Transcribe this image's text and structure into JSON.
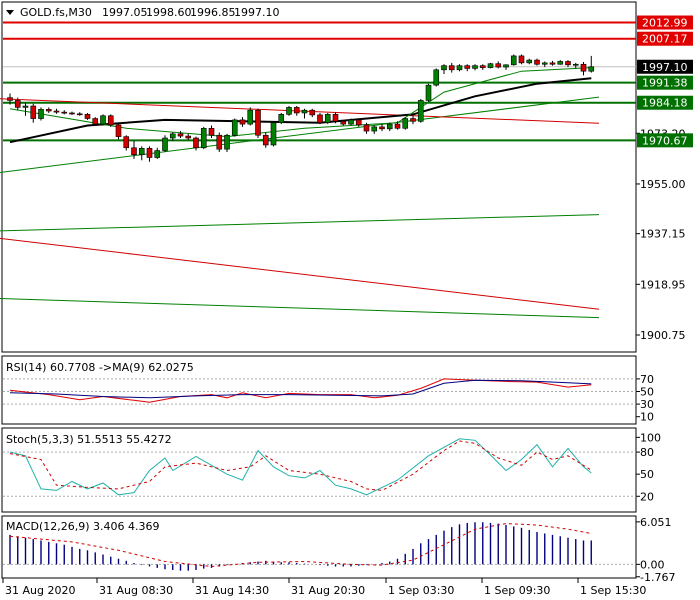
{
  "chart_data": [
    {
      "type": "candlestick",
      "panel": "price",
      "title": "GOLD.fs,M30",
      "ohlc": [
        "1997.05",
        "1998.60",
        "1996.85",
        "1997.10"
      ],
      "ylim": [
        1895,
        2020
      ],
      "yticks": [
        "1900.75",
        "1918.95",
        "1937.15",
        "1955.00",
        "1973.20"
      ],
      "xticks": [
        "31 Aug 2020",
        "31 Aug 08:30",
        "31 Aug 14:30",
        "31 Aug 20:30",
        "1 Sep 03:30",
        "1 Sep 09:30",
        "1 Sep 15:30"
      ],
      "current_price": {
        "label": "1997.10",
        "value": 1997.1
      },
      "levels": [
        {
          "label": "2012.99",
          "value": 2012.99,
          "color": "#e00000"
        },
        {
          "label": "2007.17",
          "value": 2007.17,
          "color": "#e00000"
        },
        {
          "label": "1991.38",
          "value": 1991.38,
          "color": "#007000"
        },
        {
          "label": "1984.18",
          "value": 1984.18,
          "color": "#007000"
        },
        {
          "label": "1970.67",
          "value": 1970.67,
          "color": "#007000"
        }
      ],
      "candles": [
        [
          1986.0,
          1987.5,
          1983.5,
          1985.0
        ],
        [
          1985.0,
          1986.0,
          1981.5,
          1982.5
        ],
        [
          1982.5,
          1984.0,
          1979.5,
          1983.0
        ],
        [
          1983.0,
          1983.8,
          1977.0,
          1978.5
        ],
        [
          1978.5,
          1982.5,
          1977.8,
          1981.8
        ],
        [
          1981.8,
          1982.5,
          1980.5,
          1981.2
        ],
        [
          1981.2,
          1982.0,
          1980.2,
          1980.8
        ],
        [
          1980.8,
          1981.5,
          1980.0,
          1980.5
        ],
        [
          1980.5,
          1981.0,
          1979.8,
          1980.2
        ],
        [
          1980.2,
          1980.8,
          1979.5,
          1980.0
        ],
        [
          1980.0,
          1980.5,
          1978.0,
          1978.5
        ],
        [
          1978.5,
          1979.0,
          1976.0,
          1976.5
        ],
        [
          1976.5,
          1980.0,
          1976.0,
          1979.5
        ],
        [
          1979.5,
          1980.0,
          1975.5,
          1976.2
        ],
        [
          1976.2,
          1976.8,
          1971.0,
          1972.0
        ],
        [
          1972.0,
          1972.5,
          1967.0,
          1968.0
        ],
        [
          1968.0,
          1970.5,
          1964.0,
          1965.5
        ],
        [
          1965.5,
          1968.5,
          1963.5,
          1967.8
        ],
        [
          1967.8,
          1968.5,
          1963.0,
          1964.5
        ],
        [
          1964.5,
          1968.0,
          1964.0,
          1967.0
        ],
        [
          1967.0,
          1972.5,
          1966.5,
          1971.5
        ],
        [
          1971.5,
          1973.5,
          1970.5,
          1973.0
        ],
        [
          1973.0,
          1974.0,
          1971.5,
          1972.2
        ],
        [
          1972.2,
          1973.0,
          1970.8,
          1971.5
        ],
        [
          1971.5,
          1972.0,
          1967.0,
          1968.0
        ],
        [
          1968.0,
          1975.5,
          1967.5,
          1975.0
        ],
        [
          1975.0,
          1976.0,
          1971.5,
          1972.5
        ],
        [
          1972.5,
          1973.5,
          1966.5,
          1967.5
        ],
        [
          1967.5,
          1973.0,
          1966.5,
          1972.5
        ],
        [
          1972.5,
          1978.5,
          1972.0,
          1978.0
        ],
        [
          1978.0,
          1979.0,
          1975.5,
          1976.5
        ],
        [
          1976.5,
          1982.5,
          1976.0,
          1981.5
        ],
        [
          1981.5,
          1982.0,
          1971.5,
          1972.5
        ],
        [
          1972.5,
          1973.5,
          1968.0,
          1969.0
        ],
        [
          1969.0,
          1977.5,
          1968.5,
          1977.0
        ],
        [
          1977.0,
          1980.5,
          1976.5,
          1980.0
        ],
        [
          1980.0,
          1983.0,
          1979.5,
          1982.5
        ],
        [
          1982.5,
          1983.0,
          1979.5,
          1980.5
        ],
        [
          1980.5,
          1982.0,
          1978.5,
          1981.5
        ],
        [
          1981.5,
          1982.0,
          1979.0,
          1979.8
        ],
        [
          1979.8,
          1980.5,
          1976.5,
          1977.0
        ],
        [
          1977.0,
          1980.5,
          1976.5,
          1980.0
        ],
        [
          1980.0,
          1980.8,
          1976.8,
          1977.5
        ],
        [
          1977.5,
          1978.0,
          1976.0,
          1976.5
        ],
        [
          1976.5,
          1978.5,
          1976.0,
          1978.0
        ],
        [
          1978.0,
          1978.5,
          1975.5,
          1976.2
        ],
        [
          1976.2,
          1977.0,
          1973.0,
          1974.0
        ],
        [
          1974.0,
          1976.0,
          1973.0,
          1975.5
        ],
        [
          1975.5,
          1976.5,
          1974.0,
          1974.8
        ],
        [
          1974.8,
          1977.0,
          1974.0,
          1976.5
        ],
        [
          1976.5,
          1977.5,
          1974.5,
          1975.0
        ],
        [
          1975.0,
          1979.0,
          1974.5,
          1978.5
        ],
        [
          1978.5,
          1979.5,
          1976.5,
          1977.5
        ],
        [
          1977.5,
          1985.5,
          1977.0,
          1985.0
        ],
        [
          1985.0,
          1991.0,
          1984.5,
          1990.5
        ],
        [
          1990.5,
          1996.5,
          1990.0,
          1996.0
        ],
        [
          1996.0,
          1998.0,
          1994.5,
          1997.5
        ],
        [
          1997.5,
          1998.5,
          1995.0,
          1996.0
        ],
        [
          1996.0,
          1998.0,
          1995.5,
          1997.5
        ],
        [
          1997.5,
          1998.0,
          1995.5,
          1996.5
        ],
        [
          1996.5,
          1998.0,
          1995.8,
          1997.5
        ],
        [
          1997.5,
          1998.0,
          1996.0,
          1996.8
        ],
        [
          1996.8,
          1998.5,
          1996.5,
          1998.2
        ],
        [
          1998.2,
          1999.0,
          1996.5,
          1997.0
        ],
        [
          1997.0,
          1998.0,
          1996.0,
          1997.8
        ],
        [
          1997.8,
          2001.5,
          1997.5,
          2001.0
        ],
        [
          2001.0,
          2001.5,
          1998.0,
          1998.5
        ],
        [
          1998.5,
          2000.0,
          1998.0,
          1999.5
        ],
        [
          1999.5,
          2000.0,
          1997.5,
          1998.0
        ],
        [
          1998.0,
          1999.0,
          1997.0,
          1998.5
        ],
        [
          1998.5,
          1999.2,
          1997.5,
          1998.0
        ],
        [
          1998.0,
          1999.5,
          1997.8,
          1999.0
        ],
        [
          1999.0,
          1999.5,
          1997.0,
          1997.8
        ],
        [
          1997.8,
          1998.5,
          1996.5,
          1998.0
        ],
        [
          1998.0,
          1998.8,
          1994.0,
          1995.5
        ],
        [
          1995.5,
          2001.0,
          1995.0,
          1997.1
        ]
      ],
      "ma_fast": [
        [
          0,
          1982.0
        ],
        [
          15,
          1975.0
        ],
        [
          28,
          1972.0
        ],
        [
          38,
          1975.0
        ],
        [
          50,
          1977.0
        ],
        [
          56,
          1988.0
        ],
        [
          66,
          1995.5
        ],
        [
          75,
          1996.8
        ]
      ],
      "ma_slow": [
        [
          0,
          1970.0
        ],
        [
          10,
          1976.0
        ],
        [
          20,
          1978.0
        ],
        [
          40,
          1977.0
        ],
        [
          52,
          1980.0
        ],
        [
          60,
          1986.5
        ],
        [
          68,
          1991.0
        ],
        [
          75,
          1993.0
        ]
      ],
      "trendlines": [
        {
          "color": "#008000",
          "from": [
            -3,
            1958.5
          ],
          "to": [
            76,
            1986.2
          ]
        },
        {
          "color": "#008000",
          "from": [
            -3,
            1938.0
          ],
          "to": [
            76,
            1944.0
          ]
        },
        {
          "color": "#008000",
          "from": [
            -3,
            1914.0
          ],
          "to": [
            76,
            1907.0
          ]
        },
        {
          "color": "#d00000",
          "from": [
            -3,
            1985.8
          ],
          "to": [
            76,
            1976.8
          ]
        },
        {
          "color": "#d00000",
          "from": [
            -3,
            1936.0
          ],
          "to": [
            76,
            1910.0
          ]
        }
      ]
    },
    {
      "type": "line",
      "panel": "rsi",
      "label": "RSI(14) 60.7708  ->MA(9) 62.0275",
      "ylim": [
        0,
        100
      ],
      "yticks": [
        "70",
        "50",
        "30",
        "10"
      ],
      "levels": [
        70,
        50,
        30
      ],
      "series": [
        {
          "color": "#e00000",
          "points": [
            [
              0,
              52
            ],
            [
              5,
              45
            ],
            [
              9,
              37
            ],
            [
              12,
              42
            ],
            [
              16,
              36
            ],
            [
              18,
              33
            ],
            [
              22,
              42
            ],
            [
              26,
              45
            ],
            [
              28,
              40
            ],
            [
              30,
              48
            ],
            [
              33,
              40
            ],
            [
              36,
              47
            ],
            [
              40,
              45
            ],
            [
              44,
              45
            ],
            [
              47,
              40
            ],
            [
              50,
              44
            ],
            [
              53,
              55
            ],
            [
              56,
              70
            ],
            [
              60,
              68
            ],
            [
              64,
              66
            ],
            [
              68,
              65
            ],
            [
              72,
              57
            ],
            [
              75,
              60.8
            ]
          ]
        },
        {
          "color": "#000080",
          "points": [
            [
              0,
              48
            ],
            [
              6,
              46
            ],
            [
              12,
              42
            ],
            [
              18,
              40
            ],
            [
              24,
              43
            ],
            [
              30,
              45
            ],
            [
              36,
              45
            ],
            [
              42,
              44
            ],
            [
              48,
              43
            ],
            [
              52,
              46
            ],
            [
              56,
              63
            ],
            [
              60,
              68
            ],
            [
              66,
              67
            ],
            [
              72,
              64
            ],
            [
              75,
              62.0
            ]
          ]
        }
      ]
    },
    {
      "type": "line",
      "panel": "stochastic",
      "label": "Stoch(5,3,3) 51.5513 55.4272",
      "ylim": [
        0,
        110
      ],
      "yticks": [
        "100",
        "80",
        "50",
        "20"
      ],
      "levels": [
        80,
        20
      ],
      "series": [
        {
          "color": "#20b2aa",
          "points": [
            [
              0,
              80
            ],
            [
              2,
              75
            ],
            [
              4,
              30
            ],
            [
              6,
              28
            ],
            [
              8,
              40
            ],
            [
              10,
              30
            ],
            [
              12,
              38
            ],
            [
              14,
              22
            ],
            [
              16,
              25
            ],
            [
              18,
              55
            ],
            [
              20,
              72
            ],
            [
              21,
              55
            ],
            [
              24,
              74
            ],
            [
              28,
              50
            ],
            [
              30,
              42
            ],
            [
              32,
              82
            ],
            [
              34,
              60
            ],
            [
              36,
              48
            ],
            [
              38,
              45
            ],
            [
              40,
              55
            ],
            [
              42,
              35
            ],
            [
              44,
              30
            ],
            [
              46,
              22
            ],
            [
              48,
              32
            ],
            [
              50,
              42
            ],
            [
              54,
              75
            ],
            [
              58,
              98
            ],
            [
              60,
              96
            ],
            [
              62,
              76
            ],
            [
              64,
              55
            ],
            [
              66,
              70
            ],
            [
              68,
              90
            ],
            [
              70,
              60
            ],
            [
              72,
              85
            ],
            [
              74,
              60
            ],
            [
              75,
              51.6
            ]
          ]
        },
        {
          "color": "#d00000",
          "dash": "3,3",
          "points": [
            [
              0,
              78
            ],
            [
              4,
              70
            ],
            [
              6,
              35
            ],
            [
              10,
              32
            ],
            [
              14,
              30
            ],
            [
              18,
              40
            ],
            [
              20,
              60
            ],
            [
              24,
              65
            ],
            [
              28,
              55
            ],
            [
              31,
              60
            ],
            [
              33,
              75
            ],
            [
              36,
              55
            ],
            [
              40,
              50
            ],
            [
              44,
              40
            ],
            [
              46,
              30
            ],
            [
              48,
              28
            ],
            [
              52,
              50
            ],
            [
              56,
              82
            ],
            [
              58,
              95
            ],
            [
              60,
              92
            ],
            [
              63,
              72
            ],
            [
              66,
              62
            ],
            [
              68,
              80
            ],
            [
              70,
              70
            ],
            [
              72,
              75
            ],
            [
              75,
              55.4
            ]
          ]
        }
      ]
    },
    {
      "type": "bar",
      "panel": "macd",
      "label": "MACD(12,26,9) 3.406 4.369",
      "ylim": [
        -1.8,
        6.6
      ],
      "yticks": [
        "6.051",
        "0.00",
        "-1.767"
      ],
      "hist": [
        4.2,
        4.0,
        3.8,
        3.6,
        3.4,
        3.2,
        3.0,
        2.8,
        2.5,
        2.2,
        2.0,
        1.7,
        1.4,
        1.1,
        0.8,
        0.5,
        0.2,
        -0.1,
        -0.3,
        -0.5,
        -0.7,
        -0.8,
        -0.9,
        -0.9,
        -0.8,
        -0.6,
        -0.5,
        -0.3,
        -0.1,
        0.0,
        0.2,
        0.3,
        0.4,
        0.5,
        0.4,
        0.3,
        0.3,
        0.2,
        0.1,
        0.0,
        -0.1,
        -0.2,
        -0.3,
        -0.3,
        -0.3,
        -0.2,
        -0.1,
        0.0,
        0.2,
        0.4,
        0.8,
        1.5,
        2.2,
        3.0,
        3.6,
        4.2,
        4.8,
        5.3,
        5.7,
        5.9,
        6.0,
        6.0,
        5.9,
        5.8,
        5.6,
        5.4,
        5.2,
        4.9,
        4.6,
        4.4,
        4.2,
        4.0,
        3.8,
        3.6,
        3.4,
        3.4
      ],
      "signal": [
        [
          0,
          4.0
        ],
        [
          8,
          3.2
        ],
        [
          14,
          2.0
        ],
        [
          20,
          0.4
        ],
        [
          26,
          -0.3
        ],
        [
          32,
          0.3
        ],
        [
          38,
          0.4
        ],
        [
          44,
          0.0
        ],
        [
          48,
          -0.1
        ],
        [
          52,
          0.6
        ],
        [
          56,
          2.8
        ],
        [
          60,
          5.0
        ],
        [
          64,
          5.8
        ],
        [
          68,
          5.6
        ],
        [
          72,
          5.0
        ],
        [
          75,
          4.4
        ]
      ],
      "zero_label": "0.00"
    }
  ]
}
